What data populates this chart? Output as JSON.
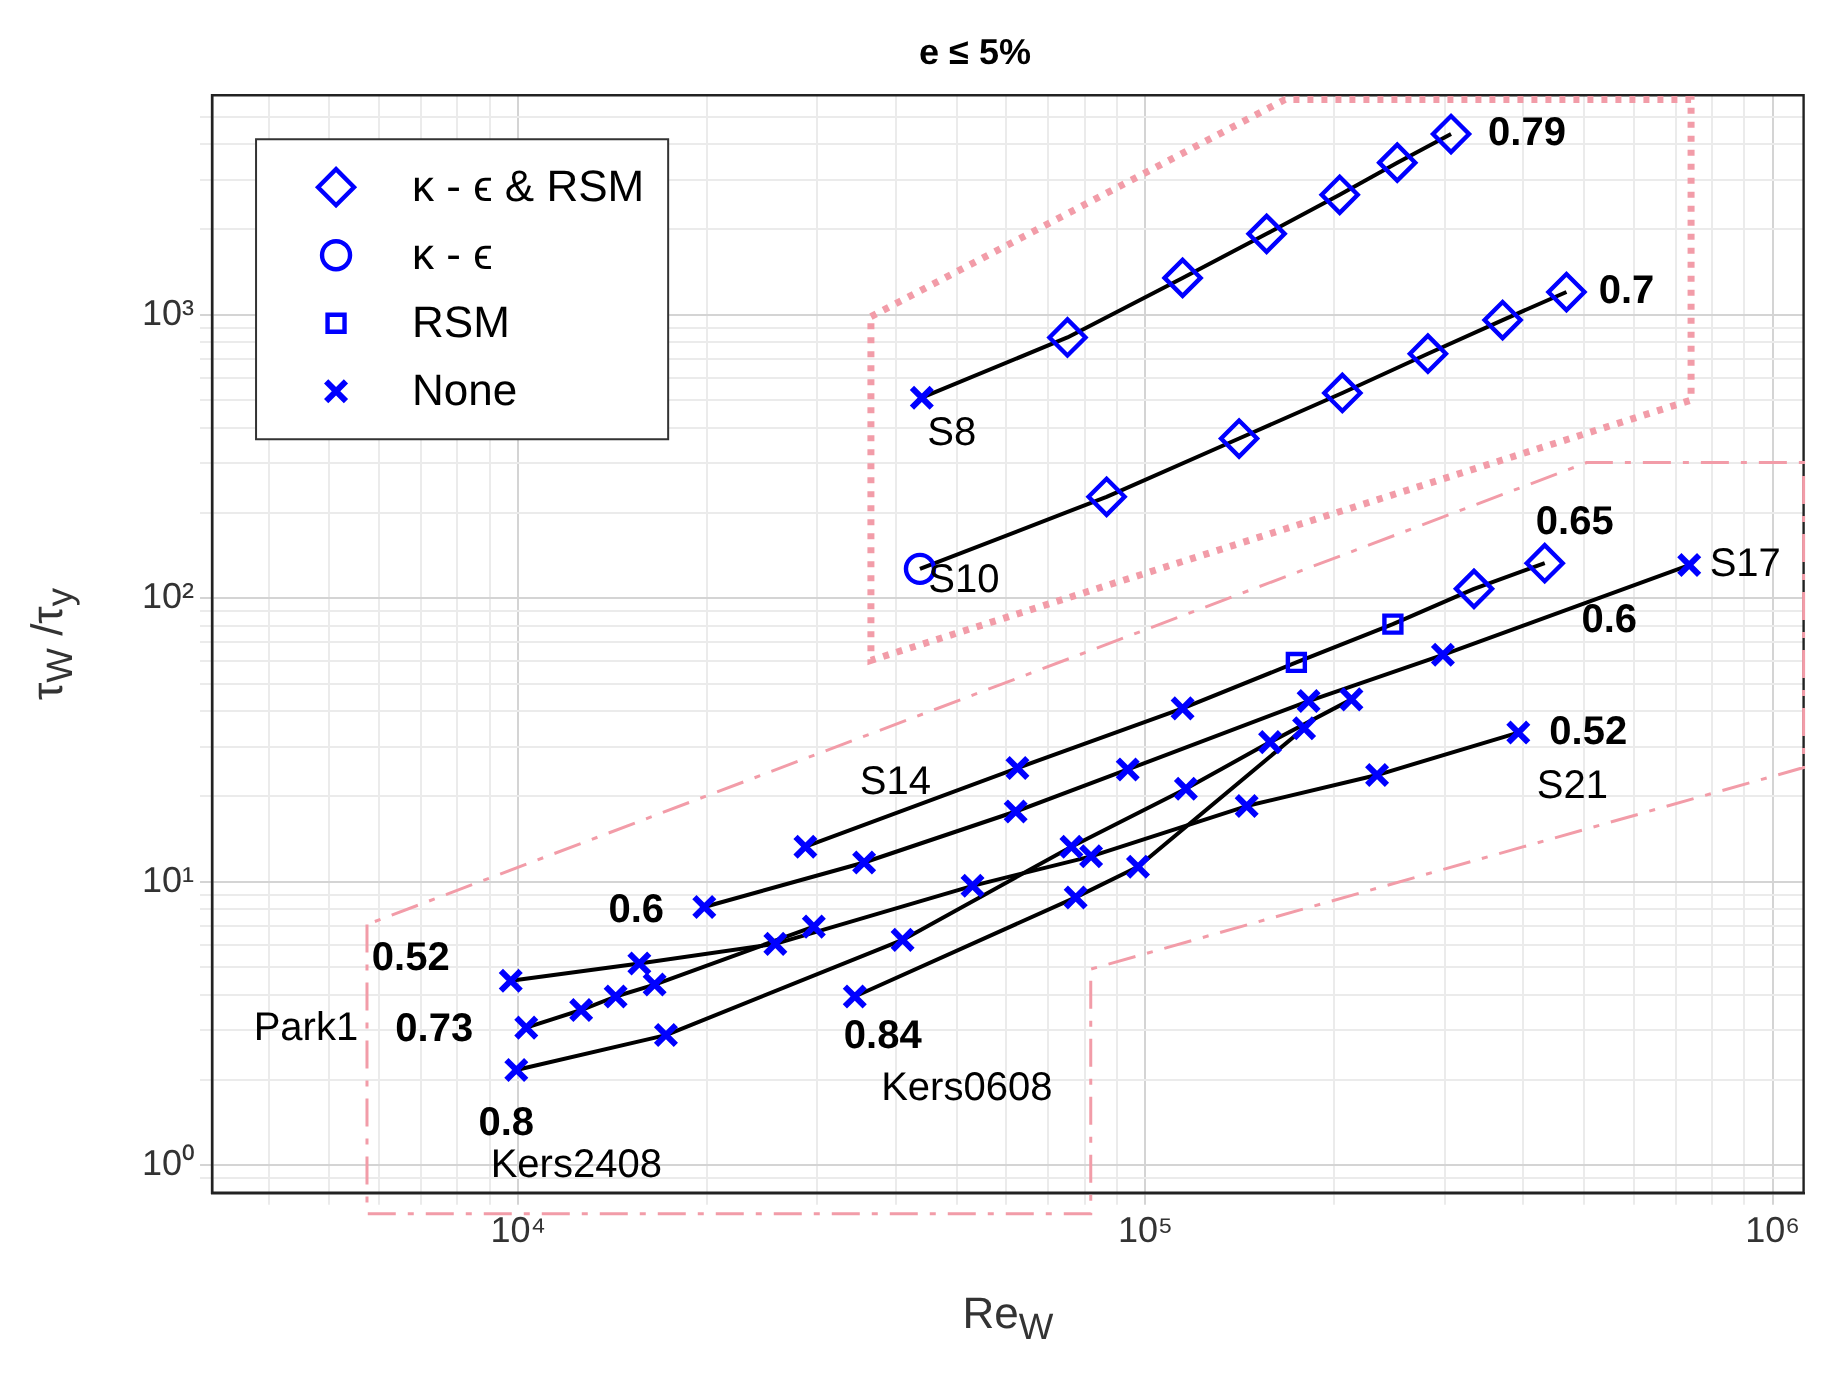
{
  "chart_data": {
    "type": "line",
    "title": "e ≤ 5%",
    "xlabel": "Re$_{W}$",
    "ylabel": "τ$_{W}$ /τ$_{y}$",
    "log": "xy",
    "grid": true,
    "legend": "top left",
    "xlim": [
      3250,
      1120000
    ],
    "ylim": [
      0.8,
      5950
    ],
    "xticks": [
      {
        "value": 4000,
        "label": null
      },
      {
        "value": 5000,
        "label": null
      },
      {
        "value": 6000,
        "label": null
      },
      {
        "value": 7000,
        "label": null
      },
      {
        "value": 8000,
        "label": null
      },
      {
        "value": 9000,
        "label": null
      },
      {
        "value": 10000,
        "label": "10⁴"
      },
      {
        "value": 20000,
        "label": null
      },
      {
        "value": 30000,
        "label": null
      },
      {
        "value": 40000,
        "label": null
      },
      {
        "value": 50000,
        "label": null
      },
      {
        "value": 60000,
        "label": null
      },
      {
        "value": 70000,
        "label": null
      },
      {
        "value": 80000,
        "label": null
      },
      {
        "value": 90000,
        "label": null
      },
      {
        "value": 100000,
        "label": "10⁵"
      },
      {
        "value": 200000,
        "label": null
      },
      {
        "value": 300000,
        "label": null
      },
      {
        "value": 400000,
        "label": null
      },
      {
        "value": 500000,
        "label": null
      },
      {
        "value": 600000,
        "label": null
      },
      {
        "value": 700000,
        "label": null
      },
      {
        "value": 800000,
        "label": null
      },
      {
        "value": 900000,
        "label": null
      },
      {
        "value": 1000000,
        "label": "10⁶"
      }
    ],
    "yticks": [
      {
        "value": 0.9,
        "label": null
      },
      {
        "value": 1,
        "label": "10⁰"
      },
      {
        "value": 2,
        "label": null
      },
      {
        "value": 3,
        "label": null
      },
      {
        "value": 4,
        "label": null
      },
      {
        "value": 5,
        "label": null
      },
      {
        "value": 6,
        "label": null
      },
      {
        "value": 7,
        "label": null
      },
      {
        "value": 8,
        "label": null
      },
      {
        "value": 9,
        "label": null
      },
      {
        "value": 10,
        "label": "10¹"
      },
      {
        "value": 20,
        "label": null
      },
      {
        "value": 30,
        "label": null
      },
      {
        "value": 40,
        "label": null
      },
      {
        "value": 50,
        "label": null
      },
      {
        "value": 60,
        "label": null
      },
      {
        "value": 70,
        "label": null
      },
      {
        "value": 80,
        "label": null
      },
      {
        "value": 90,
        "label": null
      },
      {
        "value": 100,
        "label": "10²"
      },
      {
        "value": 200,
        "label": null
      },
      {
        "value": 300,
        "label": null
      },
      {
        "value": 400,
        "label": null
      },
      {
        "value": 500,
        "label": null
      },
      {
        "value": 600,
        "label": null
      },
      {
        "value": 700,
        "label": null
      },
      {
        "value": 800,
        "label": null
      },
      {
        "value": 900,
        "label": null
      },
      {
        "value": 1000,
        "label": "10³"
      },
      {
        "value": 2000,
        "label": null
      },
      {
        "value": 3000,
        "label": null
      },
      {
        "value": 4000,
        "label": null
      },
      {
        "value": 5000,
        "label": null
      }
    ],
    "series": [
      {
        "type": "line",
        "color": "#000000",
        "marker": "none",
        "x": [
          44000,
          75100,
          114600,
          156000,
          204000,
          252000,
          307000
        ],
        "values": [
          510,
          832,
          1349,
          1930,
          2650,
          3440,
          4340
        ]
      },
      {
        "type": "line",
        "color": "#000000",
        "marker": "none",
        "x": [
          43700,
          86700,
          141000,
          206000,
          282000,
          371000,
          469000
        ],
        "values": [
          127,
          228,
          366,
          530,
          729,
          958,
          1203
        ]
      },
      {
        "type": "line",
        "color": "#000000",
        "marker": "none",
        "x": [
          28700,
          62500,
          114600,
          174000,
          248000,
          334000,
          433000
        ],
        "values": [
          13.3,
          25.2,
          40.9,
          59.4,
          81.1,
          108,
          133
        ]
      },
      {
        "type": "line",
        "color": "#000000",
        "marker": "none",
        "x": [
          19800,
          35600,
          62100,
          93700,
          182000,
          298000,
          736000
        ],
        "values": [
          8.15,
          11.7,
          17.7,
          24.9,
          43.4,
          63.2,
          131
        ]
      },
      {
        "type": "line",
        "color": "#000000",
        "marker": "none",
        "x": [
          9730,
          15600,
          25700,
          53000,
          81900,
          145000,
          234000,
          393000
        ],
        "values": [
          4.48,
          5.15,
          6.04,
          9.68,
          12.3,
          18.5,
          23.8,
          33.6
        ]
      },
      {
        "type": "line",
        "color": "#000000",
        "marker": "none",
        "x": [
          10300,
          12600,
          14300,
          16500,
          29600
        ],
        "values": [
          3.06,
          3.53,
          3.94,
          4.34,
          6.95
        ]
      },
      {
        "type": "line",
        "color": "#000000",
        "marker": "none",
        "x": [
          9930,
          17200,
          41000,
          76200,
          116000,
          158000,
          213000
        ],
        "values": [
          2.17,
          2.88,
          6.24,
          13.3,
          21.3,
          31.1,
          44.0
        ]
      },
      {
        "type": "line",
        "color": "#000000",
        "marker": "none",
        "x": [
          34400,
          77400,
          97300,
          179000
        ],
        "values": [
          3.94,
          8.81,
          11.3,
          34.8
        ]
      },
      {
        "type": "scatter",
        "name": "κ - ϵ & RSM",
        "color": "#0000ff",
        "marker": "diamond",
        "x": [
          75100,
          114600,
          156000,
          204000,
          252000,
          307000,
          86700,
          141000,
          206000,
          282000,
          371000,
          469000,
          334000,
          433000
        ],
        "values": [
          832,
          1349,
          1930,
          2650,
          3440,
          4340,
          228,
          366,
          530,
          729,
          958,
          1203,
          108,
          133
        ]
      },
      {
        "type": "scatter",
        "name": "κ - ϵ",
        "color": "#0000ff",
        "marker": "circle",
        "x": [
          43700
        ],
        "values": [
          127
        ]
      },
      {
        "type": "scatter",
        "name": "RSM",
        "color": "#0000ff",
        "marker": "square",
        "x": [
          174000,
          248000
        ],
        "values": [
          59.4,
          81.1
        ]
      },
      {
        "type": "scatter",
        "name": "None",
        "color": "#0000ff",
        "marker": "cross",
        "x": [
          44000,
          28700,
          62500,
          114600,
          19800,
          35600,
          62100,
          93700,
          182000,
          298000,
          736000,
          9730,
          15600,
          25700,
          53000,
          81900,
          145000,
          234000,
          393000,
          10300,
          12600,
          14300,
          16500,
          29600,
          9930,
          17200,
          41000,
          76200,
          116000,
          158000,
          213000,
          34400,
          77400,
          97300,
          179000
        ],
        "values": [
          510,
          13.3,
          25.2,
          40.9,
          8.15,
          11.7,
          17.7,
          24.9,
          43.4,
          63.2,
          131,
          4.48,
          5.15,
          6.04,
          9.68,
          12.3,
          18.5,
          23.8,
          33.6,
          3.06,
          3.53,
          3.94,
          4.34,
          6.95,
          2.17,
          2.88,
          6.24,
          13.3,
          21.3,
          31.1,
          44.0,
          3.94,
          8.81,
          11.3,
          34.8
        ]
      }
    ],
    "annotations": [
      {
        "text": "0.79",
        "x": 307000,
        "y": 4340
      },
      {
        "text": "0.7",
        "x": 469000,
        "y": 1203
      },
      {
        "text": "S8",
        "x": 44000,
        "y": 510
      },
      {
        "text": "S10",
        "x": 43700,
        "y": 127
      },
      {
        "text": "0.65",
        "x": 433000,
        "y": 133
      },
      {
        "text": "S17",
        "x": 736000,
        "y": 131
      },
      {
        "text": "0.6",
        "x": 736000,
        "y": 131
      },
      {
        "text": "0.52",
        "x": 393000,
        "y": 33.6
      },
      {
        "text": "S21",
        "x": 393000,
        "y": 33.6
      },
      {
        "text": "S14",
        "x": 28700,
        "y": 13.3
      },
      {
        "text": "0.6",
        "x": 19800,
        "y": 8.15
      },
      {
        "text": "0.52",
        "x": 9730,
        "y": 4.48
      },
      {
        "text": "0.73",
        "x": 10300,
        "y": 3.06
      },
      "Park1",
      {
        "text": "0.8",
        "x": 9930,
        "y": 2.17
      },
      {
        "text": "Kers2408",
        "x": 9930,
        "y": 2.17
      },
      {
        "text": "0.84",
        "x": 34400,
        "y": 3.94
      },
      {
        "text": "Kers0608",
        "x": 34400,
        "y": 3.94
      }
    ]
  }
}
